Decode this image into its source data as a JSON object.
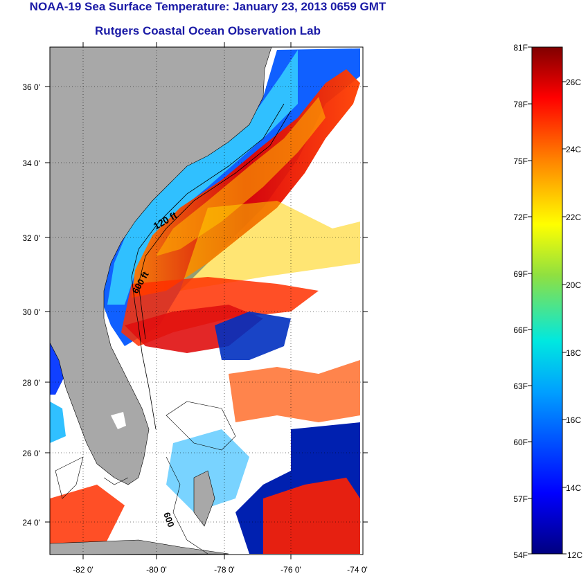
{
  "title": "NOAA-19 Sea Surface Temperature:  January 23, 2013 0659 GMT",
  "subtitle": "Rutgers Coastal Ocean Observation Lab",
  "map": {
    "x_ticks": [
      "-82 0'",
      "-80 0'",
      "-78 0'",
      "-76 0'",
      "-74 0'"
    ],
    "y_ticks": [
      "36 0'",
      "34 0'",
      "32 0'",
      "30 0'",
      "28 0'",
      "26 0'",
      "24 0'"
    ],
    "contour_labels": [
      "120 ft",
      "600 ft",
      "600"
    ],
    "colors": {
      "land": "#a8a8a8",
      "frame": "#000000"
    }
  },
  "colorbar": {
    "fahrenheit": [
      "81F",
      "78F",
      "75F",
      "72F",
      "69F",
      "66F",
      "63F",
      "60F",
      "57F",
      "54F"
    ],
    "celsius": [
      "26C",
      "24C",
      "22C",
      "20C",
      "18C",
      "16C",
      "14C",
      "12C"
    ]
  }
}
